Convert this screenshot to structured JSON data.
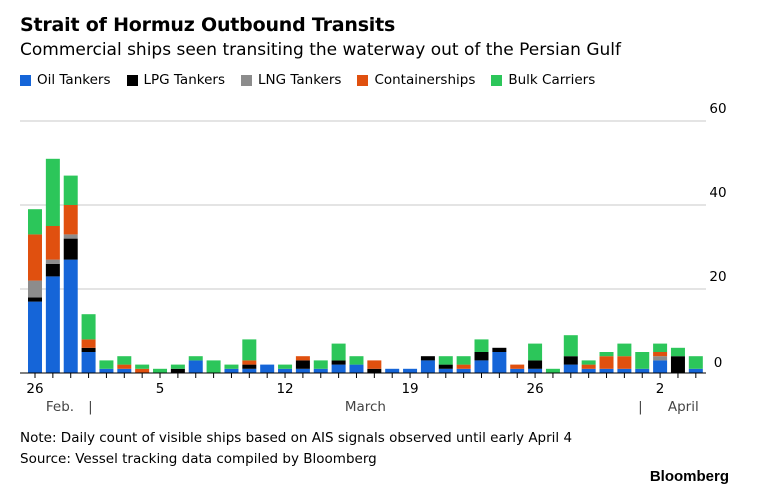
{
  "title": "Strait of Hormuz Outbound Transits",
  "subtitle": "Commercial ships seen transiting the waterway out of the Persian Gulf",
  "note": "Note: Daily count of visible ships based on AIS signals observed until early April 4",
  "source": "Source: Vessel tracking data compiled by Bloomberg",
  "brand": "Bloomberg",
  "chart_data": {
    "type": "bar",
    "stacked": true,
    "title": "Strait of Hormuz Outbound Transits",
    "ylim": [
      0,
      60
    ],
    "yticks": [
      0,
      20,
      40,
      60
    ],
    "yaxis_position": "right",
    "grid": true,
    "legend_position": "top-left",
    "x": [
      "Feb 26",
      "Feb 27",
      "Feb 28",
      "Mar 1",
      "Mar 2",
      "Mar 3",
      "Mar 4",
      "Mar 5",
      "Mar 6",
      "Mar 7",
      "Mar 8",
      "Mar 9",
      "Mar 10",
      "Mar 11",
      "Mar 12",
      "Mar 13",
      "Mar 14",
      "Mar 15",
      "Mar 16",
      "Mar 17",
      "Mar 18",
      "Mar 19",
      "Mar 20",
      "Mar 21",
      "Mar 22",
      "Mar 23",
      "Mar 24",
      "Mar 25",
      "Mar 26",
      "Mar 27",
      "Mar 28",
      "Mar 29",
      "Mar 30",
      "Mar 31",
      "Apr 1",
      "Apr 2",
      "Apr 3",
      "Apr 4"
    ],
    "xtick_labels": [
      {
        "index": 0,
        "label": "26"
      },
      {
        "index": 7,
        "label": "5"
      },
      {
        "index": 14,
        "label": "12"
      },
      {
        "index": 21,
        "label": "19"
      },
      {
        "index": 28,
        "label": "26"
      },
      {
        "index": 35,
        "label": "2"
      }
    ],
    "month_labels": [
      {
        "label": "Feb.",
        "index": 1.4
      },
      {
        "label": "|",
        "index": 3.1
      },
      {
        "label": "March",
        "index": 18.5
      },
      {
        "label": "|",
        "index": 33.9
      },
      {
        "label": "April",
        "index": 36.3
      }
    ],
    "series": [
      {
        "name": "Oil Tankers",
        "color": "#1565d8",
        "values": [
          17,
          23,
          27,
          5,
          1,
          1,
          0,
          0,
          0,
          3,
          0,
          1,
          1,
          2,
          1,
          1,
          1,
          2,
          2,
          0,
          1,
          1,
          3,
          1,
          1,
          3,
          5,
          1,
          1,
          0,
          2,
          1,
          1,
          1,
          1,
          3,
          0,
          1
        ]
      },
      {
        "name": "LPG Tankers",
        "color": "#000000",
        "values": [
          1,
          3,
          5,
          1,
          0,
          0,
          0,
          0,
          1,
          0,
          0,
          0,
          1,
          0,
          0,
          2,
          0,
          1,
          0,
          1,
          0,
          0,
          1,
          1,
          0,
          2,
          1,
          0,
          2,
          0,
          2,
          0,
          0,
          0,
          0,
          0,
          4,
          0
        ]
      },
      {
        "name": "LNG Tankers",
        "color": "#8c8c8c",
        "values": [
          4,
          1,
          1,
          0,
          0,
          0,
          0,
          0,
          0,
          0,
          0,
          0,
          0,
          0,
          0,
          0,
          0,
          0,
          0,
          0,
          0,
          0,
          0,
          0,
          0,
          0,
          0,
          0,
          0,
          0,
          0,
          0,
          0,
          0,
          0,
          1,
          0,
          0
        ]
      },
      {
        "name": "Containerships",
        "color": "#e0500f",
        "values": [
          11,
          8,
          7,
          2,
          0,
          1,
          1,
          0,
          0,
          0,
          0,
          0,
          1,
          0,
          0,
          1,
          0,
          0,
          0,
          2,
          0,
          0,
          0,
          0,
          1,
          0,
          0,
          1,
          0,
          0,
          0,
          1,
          3,
          3,
          0,
          1,
          0,
          0
        ]
      },
      {
        "name": "Bulk Carriers",
        "color": "#2cc65a",
        "values": [
          6,
          16,
          7,
          6,
          2,
          2,
          1,
          1,
          1,
          1,
          3,
          1,
          5,
          0,
          1,
          0,
          2,
          4,
          2,
          0,
          0,
          0,
          0,
          2,
          2,
          3,
          0,
          0,
          4,
          1,
          5,
          1,
          1,
          3,
          4,
          2,
          2,
          3
        ]
      }
    ]
  }
}
